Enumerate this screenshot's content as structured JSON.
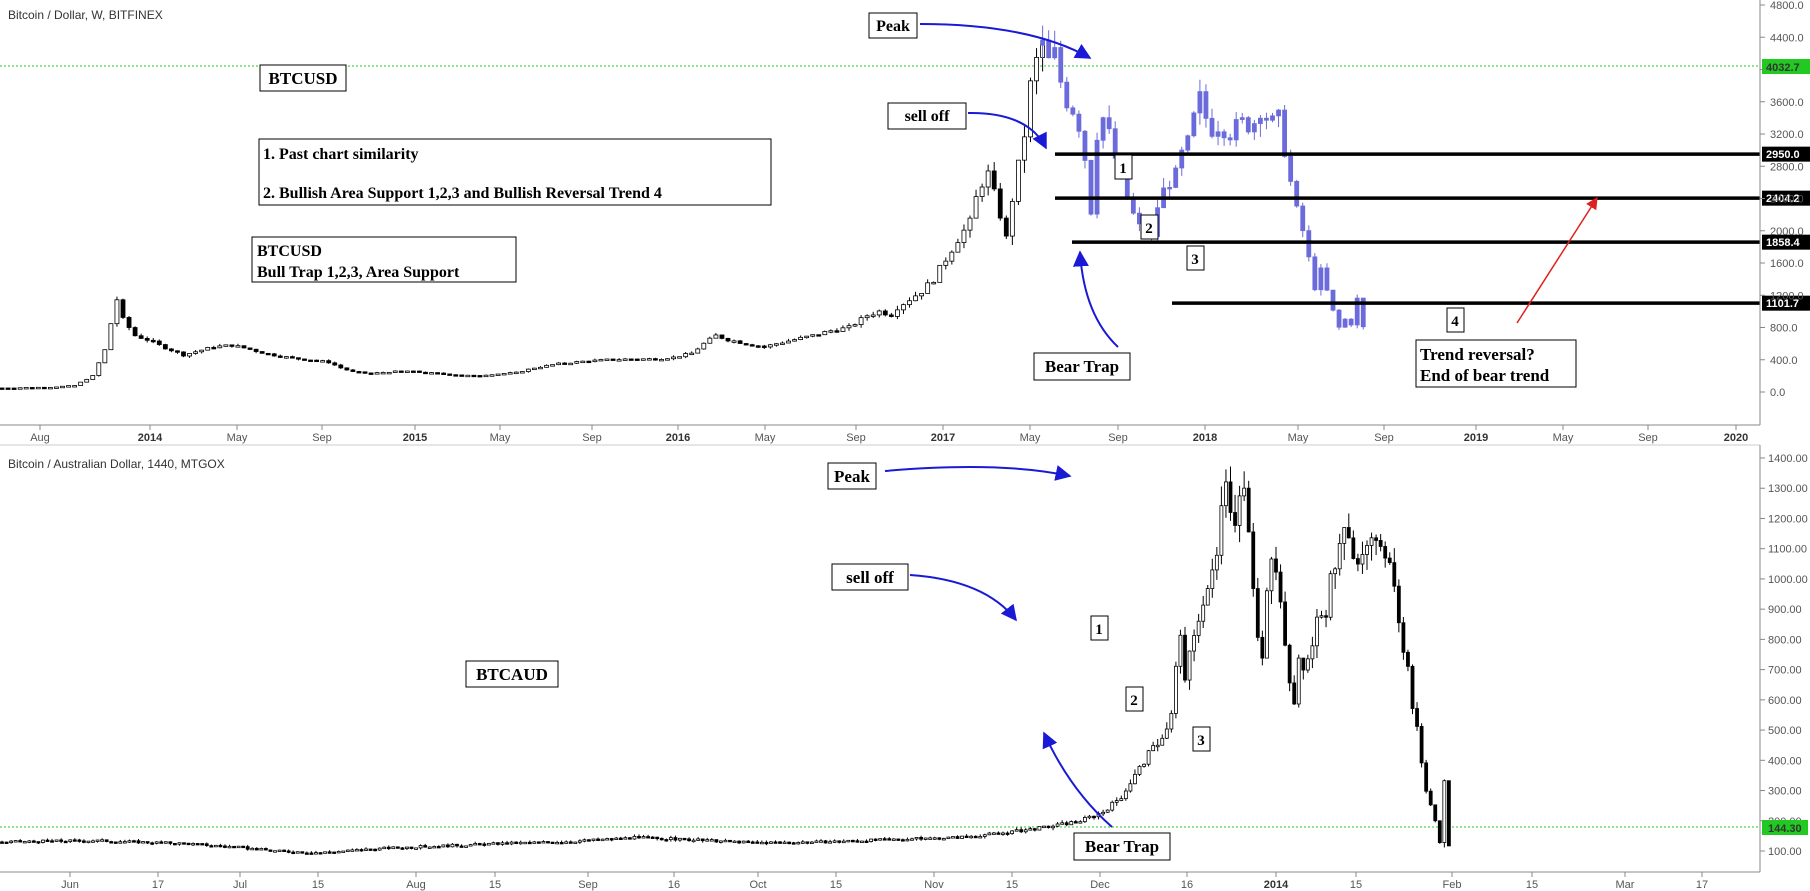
{
  "colors": {
    "candle_black": "#000000",
    "candle_blue": "#6b6bdc",
    "arrow_blue": "#1a1ad6",
    "arrow_red": "#e02020",
    "level_badge": "#000000",
    "price_badge": "#22c922",
    "dotted": "#22c922",
    "axis": "#888888"
  },
  "chart_data": [
    {
      "type": "candlestick",
      "title": "Bitcoin / Dollar, W, BITFINEX",
      "ylim": [
        -200,
        4800
      ],
      "y_ticks": [
        "4800.0",
        "4400.0",
        "4000.0",
        "3600.0",
        "3200.0",
        "2800.0",
        "2400.0",
        "2000.0",
        "1600.0",
        "1200.0",
        "800.0",
        "400.0",
        "0.0"
      ],
      "x_ticks": [
        "Aug",
        "2014",
        "May",
        "Sep",
        "2015",
        "May",
        "Sep",
        "2016",
        "May",
        "Sep",
        "2017",
        "May",
        "Sep",
        "2018",
        "May",
        "Sep",
        "2019",
        "May",
        "Sep",
        "2020"
      ],
      "last_price": "4032.7",
      "levels": [
        {
          "value": 2950.0,
          "label": "2950.0"
        },
        {
          "value": 2404.2,
          "label": "2404.2"
        },
        {
          "value": 1858.4,
          "label": "1858.4"
        },
        {
          "value": 1101.7,
          "label": "1101.7"
        }
      ],
      "path": [
        [
          0,
          50
        ],
        [
          8,
          60
        ],
        [
          12,
          80
        ],
        [
          15,
          200
        ],
        [
          17,
          520
        ],
        [
          18,
          850
        ],
        [
          19,
          1150
        ],
        [
          20,
          900
        ],
        [
          21,
          800
        ],
        [
          22,
          700
        ],
        [
          24,
          650
        ],
        [
          26,
          580
        ],
        [
          28,
          520
        ],
        [
          30,
          460
        ],
        [
          32,
          500
        ],
        [
          35,
          560
        ],
        [
          38,
          580
        ],
        [
          41,
          530
        ],
        [
          44,
          470
        ],
        [
          48,
          420
        ],
        [
          51,
          400
        ],
        [
          54,
          370
        ],
        [
          56,
          300
        ],
        [
          58,
          250
        ],
        [
          61,
          230
        ],
        [
          64,
          250
        ],
        [
          67,
          260
        ],
        [
          70,
          240
        ],
        [
          74,
          220
        ],
        [
          78,
          200
        ],
        [
          81,
          220
        ],
        [
          85,
          240
        ],
        [
          88,
          300
        ],
        [
          92,
          350
        ],
        [
          96,
          380
        ],
        [
          100,
          400
        ],
        [
          104,
          410
        ],
        [
          108,
          410
        ],
        [
          111,
          430
        ],
        [
          114,
          480
        ],
        [
          116,
          600
        ],
        [
          118,
          700
        ],
        [
          120,
          650
        ],
        [
          123,
          600
        ],
        [
          126,
          560
        ],
        [
          128,
          600
        ],
        [
          131,
          650
        ],
        [
          134,
          700
        ],
        [
          137,
          760
        ],
        [
          140,
          800
        ],
        [
          142,
          900
        ],
        [
          143,
          950
        ],
        [
          145,
          1000
        ],
        [
          147,
          960
        ],
        [
          148,
          1050
        ],
        [
          150,
          1150
        ],
        [
          152,
          1250
        ],
        [
          154,
          1400
        ],
        [
          156,
          1650
        ],
        [
          158,
          1900
        ],
        [
          160,
          2100
        ],
        [
          161,
          2400
        ],
        [
          162,
          2600
        ],
        [
          163,
          2700
        ],
        [
          164,
          2450
        ],
        [
          165,
          2200
        ],
        [
          166,
          1900
        ],
        [
          167,
          2400
        ],
        [
          168,
          2800
        ],
        [
          169,
          3200
        ],
        [
          170,
          3800
        ],
        [
          171,
          4100
        ],
        [
          172,
          4300
        ]
      ],
      "blue_path": [
        [
          172,
          4300
        ],
        [
          173,
          4100
        ],
        [
          174,
          4200
        ],
        [
          175,
          3850
        ],
        [
          176,
          3600
        ],
        [
          177,
          3500
        ],
        [
          178,
          3300
        ],
        [
          179,
          2900
        ],
        [
          180,
          2250
        ],
        [
          181,
          3200
        ],
        [
          182,
          3400
        ],
        [
          183,
          3200
        ],
        [
          184,
          2900
        ],
        [
          185,
          2600
        ],
        [
          186,
          2400
        ],
        [
          187,
          2200
        ],
        [
          188,
          2050
        ],
        [
          189,
          2100
        ],
        [
          190,
          1900
        ],
        [
          191,
          2300
        ],
        [
          192,
          2500
        ],
        [
          193,
          2600
        ],
        [
          194,
          2700
        ],
        [
          195,
          2950
        ],
        [
          196,
          3100
        ],
        [
          197,
          3400
        ],
        [
          198,
          3650
        ],
        [
          199,
          3400
        ],
        [
          200,
          3250
        ],
        [
          201,
          3300
        ],
        [
          202,
          3250
        ],
        [
          203,
          3200
        ],
        [
          204,
          3300
        ],
        [
          205,
          3350
        ],
        [
          206,
          3300
        ],
        [
          207,
          3350
        ],
        [
          208,
          3500
        ],
        [
          209,
          3400
        ],
        [
          210,
          3350
        ],
        [
          211,
          3400
        ],
        [
          212,
          3000
        ],
        [
          213,
          2600
        ],
        [
          214,
          2250
        ],
        [
          215,
          2000
        ],
        [
          216,
          1650
        ],
        [
          217,
          1300
        ],
        [
          218,
          1500
        ],
        [
          219,
          1250
        ],
        [
          220,
          1000
        ],
        [
          221,
          800
        ],
        [
          222,
          900
        ],
        [
          223,
          850
        ],
        [
          224,
          1150
        ],
        [
          225,
          800
        ]
      ]
    },
    {
      "type": "candlestick",
      "title": "Bitcoin / Australian Dollar, 1440, MTGOX",
      "ylim": [
        50,
        1450
      ],
      "y_ticks": [
        "1400.00",
        "1300.00",
        "1200.00",
        "1100.00",
        "1000.00",
        "900.00",
        "800.00",
        "700.00",
        "600.00",
        "500.00",
        "400.00",
        "300.00",
        "200.00",
        "100.00"
      ],
      "x_ticks": [
        "Jun",
        "17",
        "Jul",
        "15",
        "Aug",
        "15",
        "Sep",
        "16",
        "Oct",
        "15",
        "Nov",
        "15",
        "Dec",
        "16",
        "2014",
        "15",
        "Feb",
        "15",
        "Mar",
        "17"
      ],
      "last_price": "144.30",
      "path": [
        [
          0,
          130
        ],
        [
          20,
          135
        ],
        [
          40,
          125
        ],
        [
          50,
          115
        ],
        [
          60,
          100
        ],
        [
          70,
          95
        ],
        [
          85,
          110
        ],
        [
          110,
          125
        ],
        [
          125,
          132
        ],
        [
          140,
          145
        ],
        [
          150,
          138
        ],
        [
          165,
          128
        ],
        [
          180,
          130
        ],
        [
          195,
          138
        ],
        [
          210,
          145
        ],
        [
          220,
          160
        ],
        [
          230,
          180
        ],
        [
          237,
          200
        ],
        [
          242,
          230
        ],
        [
          246,
          280
        ],
        [
          249,
          350
        ],
        [
          252,
          420
        ],
        [
          254,
          460
        ],
        [
          256,
          500
        ],
        [
          257,
          550
        ],
        [
          258,
          700
        ],
        [
          259,
          820
        ],
        [
          260,
          650
        ],
        [
          261,
          750
        ],
        [
          262,
          820
        ],
        [
          263,
          880
        ],
        [
          265,
          950
        ],
        [
          267,
          1100
        ],
        [
          268,
          1280
        ],
        [
          269,
          1320
        ],
        [
          270,
          1250
        ],
        [
          271,
          1200
        ],
        [
          272,
          1300
        ],
        [
          273,
          1300
        ],
        [
          274,
          1150
        ],
        [
          275,
          950
        ],
        [
          276,
          800
        ],
        [
          277,
          740
        ],
        [
          278,
          950
        ],
        [
          279,
          1050
        ],
        [
          280,
          1050
        ],
        [
          281,
          950
        ],
        [
          282,
          800
        ],
        [
          283,
          650
        ],
        [
          284,
          600
        ],
        [
          285,
          720
        ],
        [
          286,
          700
        ],
        [
          287,
          750
        ],
        [
          288,
          780
        ],
        [
          289,
          860
        ],
        [
          290,
          880
        ],
        [
          291,
          900
        ],
        [
          292,
          1000
        ],
        [
          293,
          1050
        ],
        [
          294,
          1100
        ],
        [
          295,
          1150
        ],
        [
          296,
          1120
        ],
        [
          297,
          1100
        ],
        [
          298,
          1080
        ],
        [
          299,
          1100
        ],
        [
          300,
          1080
        ],
        [
          301,
          1120
        ],
        [
          302,
          1100
        ],
        [
          303,
          1080
        ],
        [
          304,
          1090
        ],
        [
          305,
          1080
        ],
        [
          306,
          1000
        ],
        [
          307,
          850
        ],
        [
          308,
          780
        ],
        [
          309,
          700
        ],
        [
          310,
          580
        ],
        [
          311,
          500
        ],
        [
          312,
          400
        ],
        [
          313,
          300
        ],
        [
          314,
          260
        ],
        [
          315,
          200
        ],
        [
          316,
          130
        ],
        [
          317,
          330
        ],
        [
          318,
          120
        ]
      ]
    }
  ],
  "annotations": {
    "top": {
      "peak": "Peak",
      "sell_off": "sell off",
      "btcusd": "BTCUSD",
      "note_line1": "1. Past chart similarity",
      "note_line2": "2. Bullish Area Support 1,2,3 and  Bullish Reversal Trend 4",
      "bull_trap_line1": "BTCUSD",
      "bull_trap_line2": "Bull Trap 1,2,3, Area Support",
      "bear_trap": "Bear Trap",
      "n1": "1",
      "n2": "2",
      "n3": "3",
      "n4": "4",
      "reversal_line1": "Trend reversal?",
      "reversal_line2": "End of bear trend"
    },
    "bottom": {
      "peak": "Peak",
      "sell_off": "sell off",
      "btcaud": "BTCAUD",
      "bear_trap": "Bear Trap",
      "n1": "1",
      "n2": "2",
      "n3": "3"
    }
  }
}
